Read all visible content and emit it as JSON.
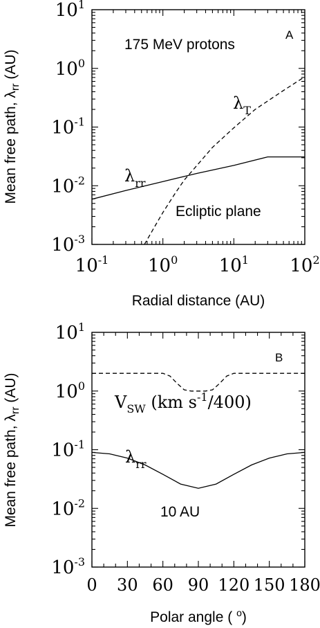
{
  "chart_data": [
    {
      "type": "line",
      "panel_label": "A",
      "xlabel": "Radial distance (AU)",
      "ylabel": {
        "main": "Mean free path, λ",
        "sub": "rr",
        "unit": " (AU)"
      },
      "x_scale": "log",
      "y_scale": "log",
      "xlim": [
        0.1,
        100
      ],
      "ylim": [
        0.001,
        10
      ],
      "x_ticks": [
        {
          "value": 0.1,
          "base": "10",
          "exp": "-1"
        },
        {
          "value": 1,
          "base": "10",
          "exp": "0"
        },
        {
          "value": 10,
          "base": "10",
          "exp": "1"
        },
        {
          "value": 100,
          "base": "10",
          "exp": "2"
        }
      ],
      "y_ticks": [
        {
          "value": 0.001,
          "base": "10",
          "exp": "-3"
        },
        {
          "value": 0.01,
          "base": "10",
          "exp": "-2"
        },
        {
          "value": 0.1,
          "base": "10",
          "exp": "-1"
        },
        {
          "value": 1,
          "base": "10",
          "exp": "0"
        },
        {
          "value": 10,
          "base": "10",
          "exp": "1"
        }
      ],
      "grid": false,
      "annotations": [
        {
          "id": "title",
          "text": "175 MeV protons"
        },
        {
          "id": "plane",
          "text": "Ecliptic plane"
        }
      ],
      "series": [
        {
          "main": "λ",
          "sub": "rr",
          "style": "solid",
          "x": [
            0.1,
            0.3,
            1,
            3,
            10,
            30,
            100
          ],
          "y": [
            0.0059,
            0.0083,
            0.0118,
            0.0162,
            0.0222,
            0.031,
            0.031
          ]
        },
        {
          "main": "λ",
          "sub": "T",
          "style": "dashed",
          "x": [
            0.55,
            0.8,
            1,
            1.5,
            2,
            3,
            5,
            10,
            20,
            50,
            100
          ],
          "y": [
            0.001,
            0.0022,
            0.0035,
            0.0075,
            0.0125,
            0.022,
            0.045,
            0.097,
            0.2,
            0.42,
            0.72
          ]
        }
      ]
    },
    {
      "type": "line",
      "panel_label": "B",
      "xlabel": "Polar angle (°)",
      "ylabel": {
        "main": "Mean free path, λ",
        "sub": "rr",
        "unit": " (AU)"
      },
      "x_scale": "linear",
      "y_scale": "log",
      "xlim": [
        0,
        180
      ],
      "ylim": [
        0.001,
        10
      ],
      "x_ticks": [
        "0",
        "30",
        "60",
        "90",
        "120",
        "150",
        "180"
      ],
      "y_ticks": [
        {
          "value": 0.001,
          "base": "10",
          "exp": "-3"
        },
        {
          "value": 0.01,
          "base": "10",
          "exp": "-2"
        },
        {
          "value": 0.1,
          "base": "10",
          "exp": "-1"
        },
        {
          "value": 1,
          "base": "10",
          "exp": "0"
        },
        {
          "value": 10,
          "base": "10",
          "exp": "1"
        }
      ],
      "grid": false,
      "annotations": [
        {
          "id": "distance",
          "text": "10 AU"
        }
      ],
      "series": [
        {
          "main": "λ",
          "sub": "rr",
          "style": "solid",
          "x": [
            0,
            15,
            30,
            45,
            60,
            75,
            90,
            105,
            120,
            135,
            150,
            165,
            180
          ],
          "y": [
            0.09,
            0.085,
            0.072,
            0.055,
            0.038,
            0.026,
            0.022,
            0.026,
            0.038,
            0.055,
            0.072,
            0.085,
            0.09
          ]
        },
        {
          "main": "V",
          "sub": "SW",
          "extra_before": " (km s",
          "sup": "-1",
          "extra_after": "/400)",
          "style": "dashed",
          "x": [
            0,
            60,
            66,
            72,
            78,
            84,
            96,
            102,
            108,
            114,
            120,
            180
          ],
          "y": [
            2.0,
            2.0,
            1.8,
            1.35,
            1.05,
            1.0,
            1.0,
            1.05,
            1.35,
            1.8,
            2.0,
            2.0
          ]
        }
      ]
    }
  ]
}
